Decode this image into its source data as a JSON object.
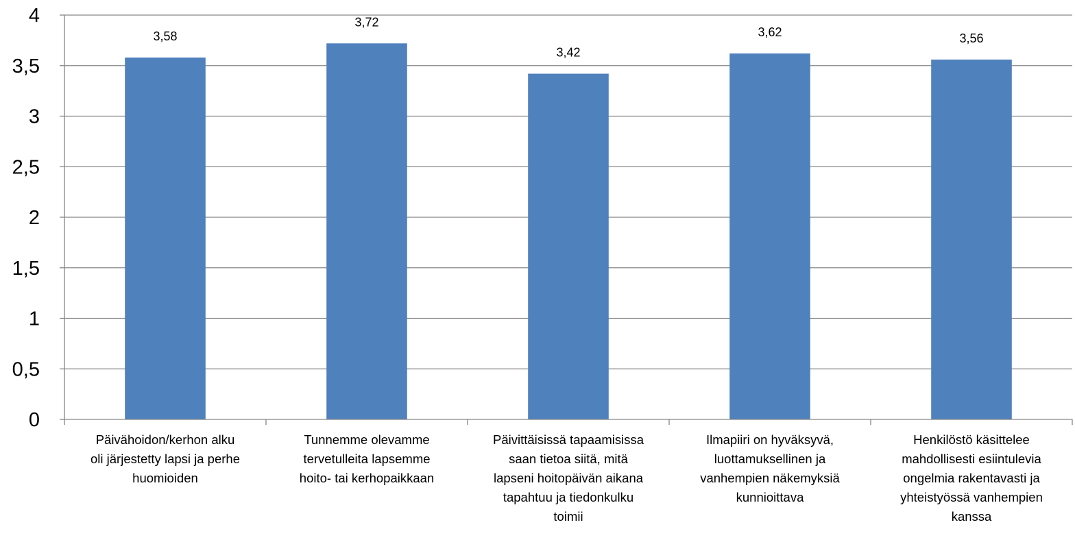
{
  "chart_data": {
    "type": "bar",
    "title": "",
    "xlabel": "",
    "ylabel": "",
    "ylim": [
      0,
      4
    ],
    "ytick_step": 0.5,
    "ytick_labels": [
      "0",
      "0,5",
      "1",
      "1,5",
      "2",
      "2,5",
      "3",
      "3,5",
      "4"
    ],
    "grid": true,
    "legend": "none",
    "bar_color": "#4F81BD",
    "categories": [
      [
        "Päivähoidon/kerhon alku",
        "oli järjestetty lapsi ja perhe",
        "huomioiden"
      ],
      [
        "Tunnemme olevamme",
        "tervetulleita lapsemme",
        "hoito- tai  kerhopaikkaan"
      ],
      [
        "Päivittäisissä tapaamisissa",
        "saan tietoa siitä, mitä",
        "lapseni hoitopäivän aikana",
        "tapahtuu ja tiedonkulku",
        "toimii"
      ],
      [
        "Ilmapiiri on hyväksyvä,",
        "luottamuksellinen ja",
        "vanhempien näkemyksiä",
        "kunnioittava"
      ],
      [
        "Henkilöstö käsittelee",
        "mahdollisesti esiintulevia",
        "ongelmia rakentavasti ja",
        "yhteistyössä vanhempien",
        "kanssa"
      ]
    ],
    "values": [
      3.58,
      3.72,
      3.42,
      3.62,
      3.56
    ],
    "data_labels": [
      "3,58",
      "3,72",
      "3,42",
      "3,62",
      "3,56"
    ]
  }
}
